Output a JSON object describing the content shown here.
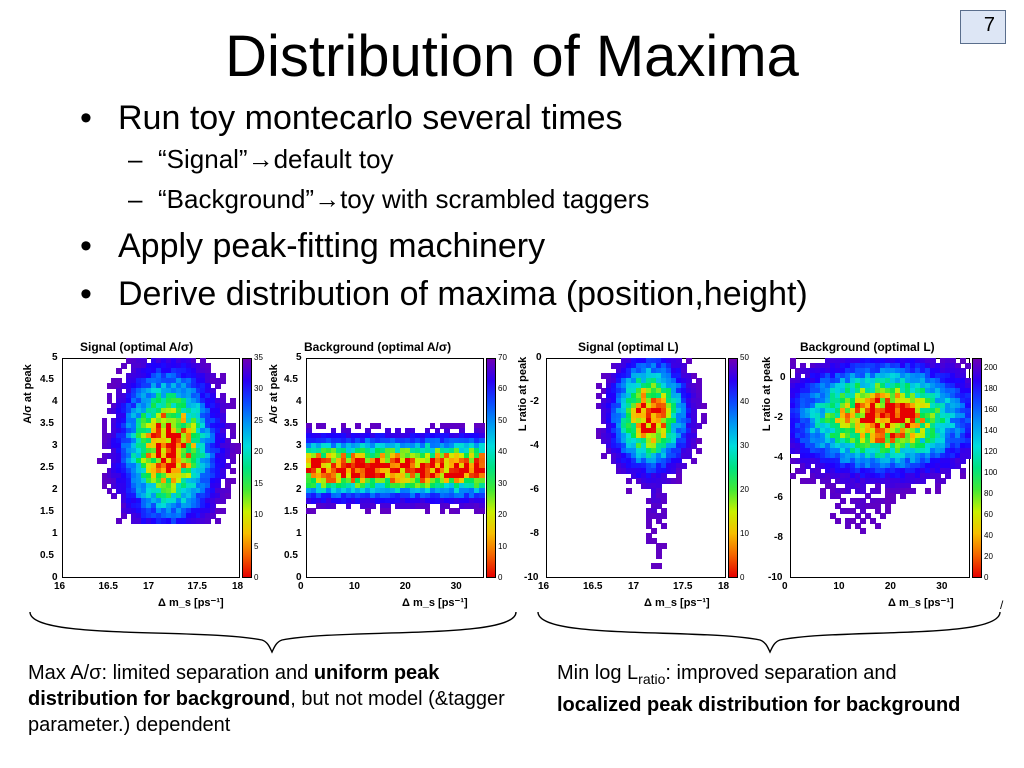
{
  "page_number": "7",
  "title": "Distribution of Maxima",
  "bullets": [
    {
      "text": "Run toy montecarlo several times",
      "sub": [
        "“Signal”→default toy",
        "“Background”→toy with scrambled taggers"
      ]
    },
    {
      "text": "Apply peak-fitting machinery",
      "sub": []
    },
    {
      "text": "Derive distribution of maxima (position,height)",
      "sub": []
    }
  ],
  "bullet_glyph": "•",
  "dash_glyph": "–",
  "captions": {
    "left": {
      "p1": "Max A/σ: limited separation and ",
      "bold1": "uniform peak distribution for background",
      "p2": ", but not model (&tagger parameter.) dependent"
    },
    "right": {
      "p1": "Min log L",
      "sub": "ratio",
      "p2": ": improved separation and ",
      "bold1": "localized peak distribution for background"
    }
  },
  "stray_mark": "/",
  "chart_data": [
    {
      "type": "heatmap",
      "title": "Signal (optimal A/σ)",
      "xlabel": "Δ m_s [ps⁻¹]",
      "ylabel": "A/σ at peak",
      "xlim": [
        16,
        18
      ],
      "ylim": [
        0,
        5
      ],
      "xticks": [
        "16",
        "16.5",
        "17",
        "17.5",
        "18"
      ],
      "yticks": [
        "0",
        "0.5",
        "1",
        "1.5",
        "2",
        "2.5",
        "3",
        "3.5",
        "4",
        "4.5",
        "5"
      ],
      "zlim": [
        0,
        35
      ],
      "zticks": [
        "0",
        "5",
        "10",
        "15",
        "20",
        "25",
        "30",
        "35"
      ],
      "blobs": [
        {
          "x": 17.2,
          "y": 3.0,
          "sx": 0.28,
          "sy": 0.9,
          "w": 1.0
        }
      ],
      "floor_y": 1.3,
      "theme": "sig-as"
    },
    {
      "type": "heatmap",
      "title": "Background (optimal A/σ)",
      "xlabel": "Δ m_s [ps⁻¹]",
      "ylabel": "A/σ at peak",
      "xlim": [
        0,
        35
      ],
      "ylim": [
        0,
        5
      ],
      "xticks": [
        "0",
        "10",
        "20",
        "30"
      ],
      "yticks": [
        "0",
        "0.5",
        "1",
        "1.5",
        "2",
        "2.5",
        "3",
        "3.5",
        "4",
        "4.5",
        "5"
      ],
      "zlim": [
        0,
        70
      ],
      "zticks": [
        "0",
        "10",
        "20",
        "30",
        "40",
        "50",
        "60",
        "70"
      ],
      "blobs": [
        {
          "x": 17,
          "y": 2.5,
          "sx": 60,
          "sy": 0.35,
          "w": 1.0
        }
      ],
      "floor_y": 1.5,
      "theme": "bkg-as"
    },
    {
      "type": "heatmap",
      "title": "Signal (optimal L)",
      "xlabel": "Δ m_s [ps⁻¹]",
      "ylabel": "L ratio at peak",
      "xlim": [
        16,
        18
      ],
      "ylim": [
        -10,
        0
      ],
      "xticks": [
        "16",
        "16.5",
        "17",
        "17.5",
        "18"
      ],
      "yticks": [
        "-10",
        "-8",
        "-6",
        "-4",
        "-2",
        "0"
      ],
      "zlim": [
        0,
        50
      ],
      "zticks": [
        "0",
        "10",
        "20",
        "30",
        "40",
        "50"
      ],
      "blobs": [
        {
          "x": 17.15,
          "y": -2.6,
          "sx": 0.22,
          "sy": 1.3,
          "w": 1.0
        }
      ],
      "floor_y": null,
      "theme": "sig-l"
    },
    {
      "type": "heatmap",
      "title": "Background (optimal L)",
      "xlabel": "Δ m_s [ps⁻¹]",
      "ylabel": "L ratio at peak",
      "xlim": [
        0,
        35
      ],
      "ylim": [
        -10,
        1
      ],
      "xticks": [
        "0",
        "10",
        "20",
        "30"
      ],
      "yticks": [
        "-10",
        "-8",
        "-6",
        "-4",
        "-2",
        "0"
      ],
      "zlim": [
        0,
        210
      ],
      "zticks": [
        "0",
        "20",
        "40",
        "60",
        "80",
        "100",
        "120",
        "140",
        "160",
        "180",
        "200"
      ],
      "blobs": [
        {
          "x": 18,
          "y": -2.0,
          "sx": 9,
          "sy": 1.4,
          "w": 1.0
        }
      ],
      "floor_y": null,
      "theme": "bkg-l"
    }
  ]
}
